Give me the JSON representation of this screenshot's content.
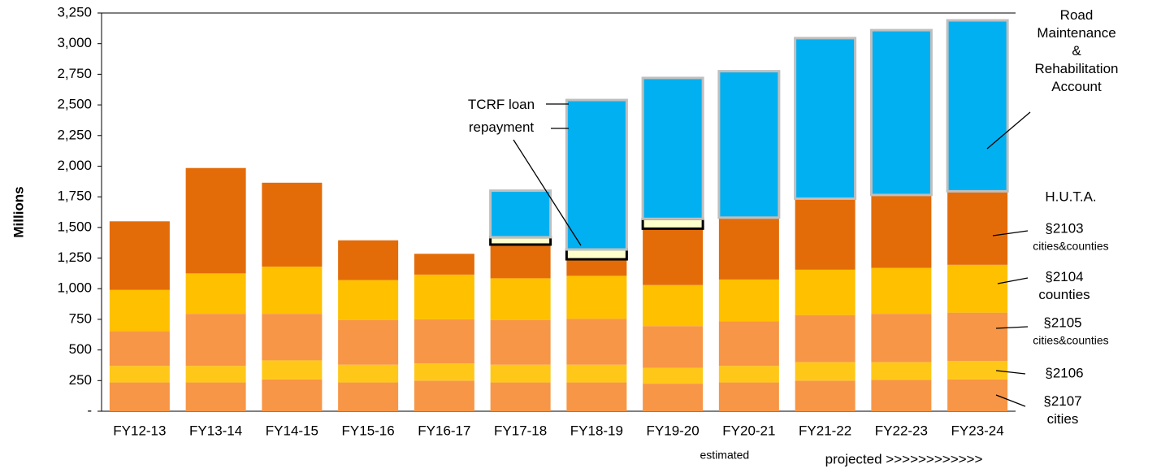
{
  "chart_data": {
    "type": "stacked_bar",
    "y_axis_title": "Millions",
    "categories": [
      "FY12-13",
      "FY13-14",
      "FY14-15",
      "FY15-16",
      "FY16-17",
      "FY17-18",
      "FY18-19",
      "FY19-20",
      "FY20-21",
      "FY21-22",
      "FY22-23",
      "FY23-24"
    ],
    "category_notes": [
      {
        "index": 8,
        "text": "estimated"
      },
      {
        "index": 9,
        "text": "projected >>>>>>>>>>>>"
      }
    ],
    "ylim": [
      0,
      3250
    ],
    "yticks": [
      {
        "value": 0,
        "label": "-"
      },
      250,
      500,
      750,
      {
        "value": 1000,
        "label": "1,000"
      },
      {
        "value": 1250,
        "label": "1,250"
      },
      {
        "value": 1500,
        "label": "1,500"
      },
      {
        "value": 1750,
        "label": "1,750"
      },
      {
        "value": 2000,
        "label": "2,000"
      },
      {
        "value": 2250,
        "label": "2,250"
      },
      {
        "value": 2500,
        "label": "2,500"
      },
      {
        "value": 2750,
        "label": "2,750"
      },
      {
        "value": 3000,
        "label": "3,000"
      },
      {
        "value": 3250,
        "label": "3,250"
      }
    ],
    "group_label": "H.U.T.A.",
    "series": [
      {
        "name": "§2107\ncities",
        "color": "#F79646",
        "values": [
          235,
          235,
          260,
          235,
          250,
          235,
          235,
          225,
          235,
          250,
          255,
          260
        ]
      },
      {
        "name": "§2106",
        "color": "#FFC819",
        "values": [
          135,
          135,
          155,
          145,
          140,
          145,
          145,
          130,
          135,
          150,
          145,
          150
        ]
      },
      {
        "name": "§2105",
        "detail": "cities&counties",
        "color": "#F79646",
        "values": [
          285,
          425,
          380,
          365,
          360,
          365,
          375,
          340,
          365,
          385,
          395,
          395
        ]
      },
      {
        "name": "§2104\ncounties",
        "color": "#FFC000",
        "values": [
          335,
          330,
          385,
          325,
          365,
          340,
          350,
          335,
          340,
          370,
          375,
          390
        ]
      },
      {
        "name": "§2103",
        "detail": "cities&counties",
        "color": "#E36C09",
        "values": [
          560,
          860,
          685,
          325,
          170,
          275,
          135,
          460,
          505,
          580,
          595,
          600
        ]
      },
      {
        "name": "TCRF loan\nrepayment",
        "color": "#FFFFCC",
        "stroke": "#000000",
        "values": [
          null,
          null,
          null,
          null,
          null,
          60,
          80,
          80,
          null,
          null,
          null,
          null
        ]
      },
      {
        "name": "Road\nMaintenance\n&\nRehabilitation\nAccount",
        "color": "#00B0F0",
        "stroke": "#BFBFBF",
        "values": [
          null,
          null,
          null,
          null,
          null,
          380,
          1220,
          1150,
          1195,
          1310,
          1345,
          1395
        ]
      }
    ]
  }
}
